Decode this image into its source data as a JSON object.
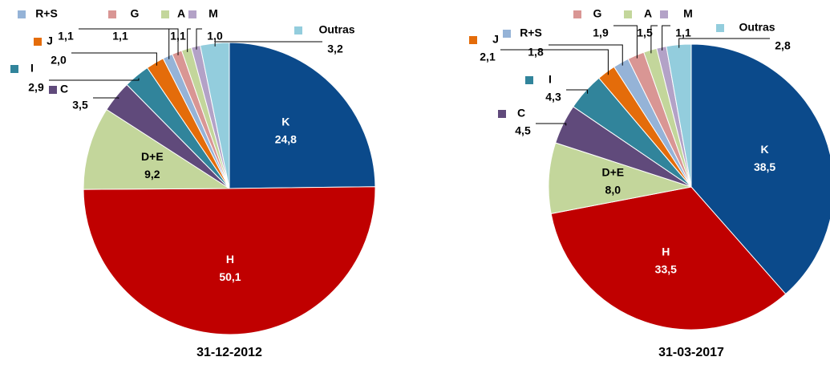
{
  "chart_data": [
    {
      "type": "pie",
      "title": "31-12-2012",
      "categories": [
        "K",
        "H",
        "D+E",
        "C",
        "I",
        "J",
        "R+S",
        "G",
        "A",
        "M",
        "Outras"
      ],
      "values": [
        24.8,
        50.1,
        9.2,
        3.5,
        2.9,
        2.0,
        1.1,
        1.1,
        1.1,
        1.0,
        3.2
      ],
      "value_labels": [
        "24,8",
        "50,1",
        "9,2",
        "3,5",
        "2,9",
        "2,0",
        "1,1",
        "1,1",
        "1,1",
        "1,0",
        "3,2"
      ],
      "colors": [
        "#0b4a8b",
        "#c00000",
        "#c3d69b",
        "#604a7b",
        "#31849b",
        "#e46c0a",
        "#95b3d7",
        "#d99694",
        "#c3d69b",
        "#b3a2c7",
        "#93cddd"
      ]
    },
    {
      "type": "pie",
      "title": "31-03-2017",
      "categories": [
        "K",
        "H",
        "D+E",
        "C",
        "I",
        "J",
        "R+S",
        "G",
        "A",
        "M",
        "Outras"
      ],
      "values": [
        38.5,
        33.5,
        8.0,
        4.5,
        4.3,
        2.1,
        1.8,
        1.9,
        1.5,
        1.1,
        2.8
      ],
      "value_labels": [
        "38,5",
        "33,5",
        "8,0",
        "4,5",
        "4,3",
        "2,1",
        "1,8",
        "1,9",
        "1,5",
        "1,1",
        "2,8"
      ],
      "colors": [
        "#0b4a8b",
        "#c00000",
        "#c3d69b",
        "#604a7b",
        "#31849b",
        "#e46c0a",
        "#95b3d7",
        "#d99694",
        "#c3d69b",
        "#b3a2c7",
        "#93cddd"
      ]
    }
  ]
}
